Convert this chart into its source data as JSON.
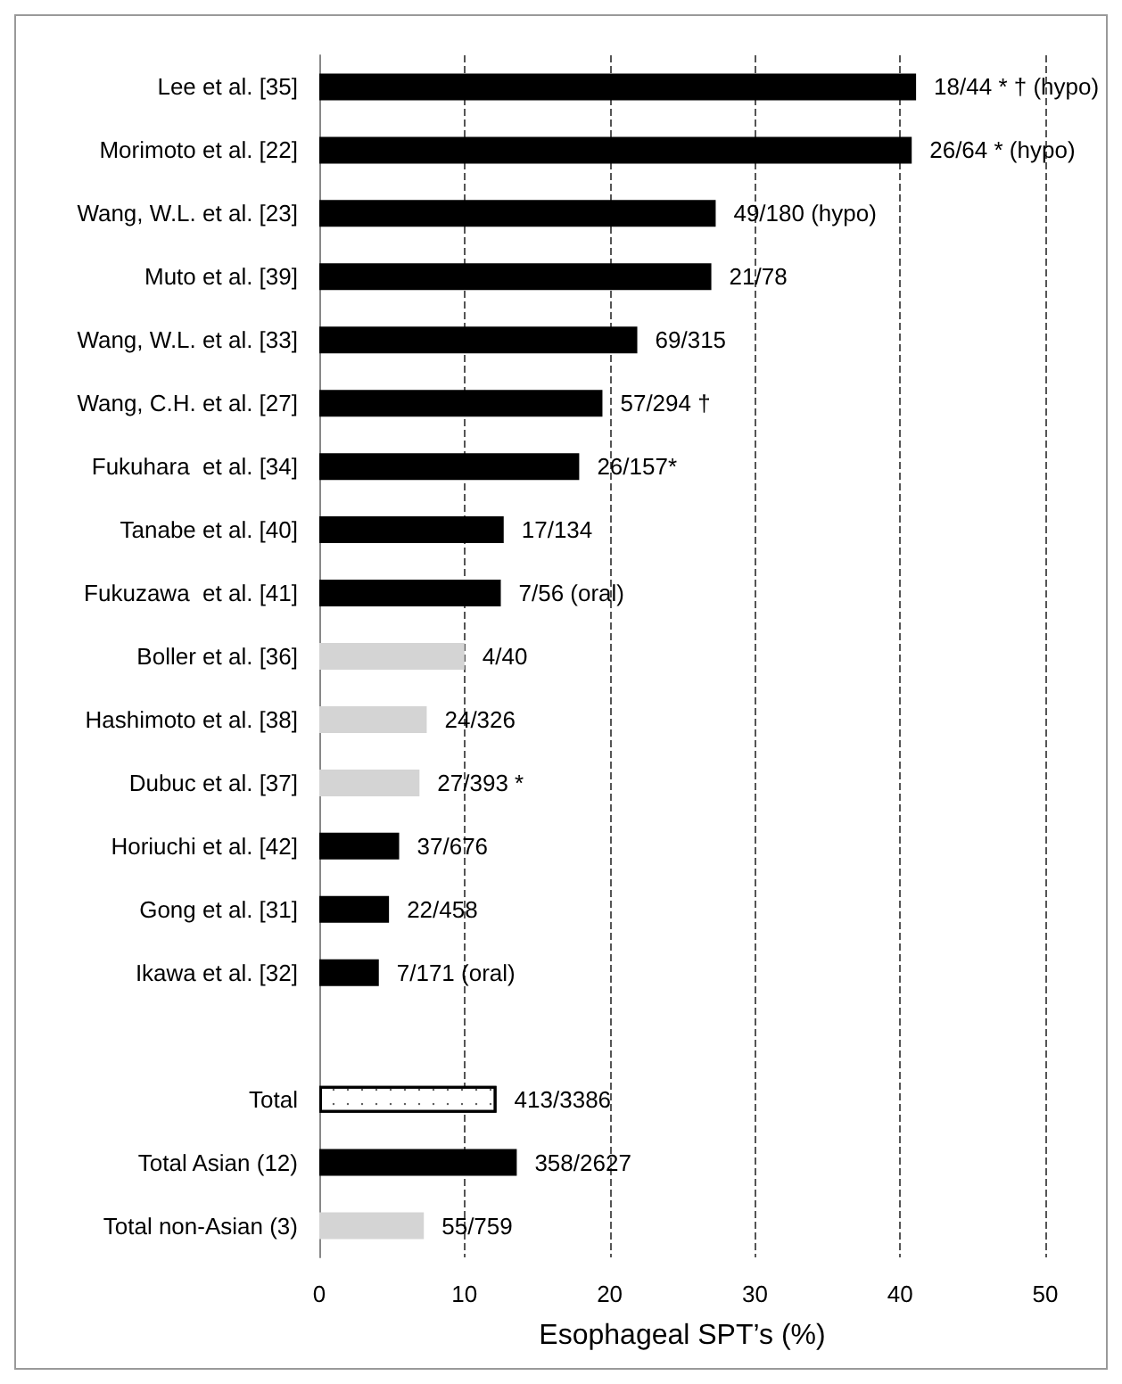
{
  "chart_data": {
    "type": "bar",
    "orientation": "horizontal",
    "xlabel": "Esophageal SPT’s (%)",
    "categories": [
      "Lee et al. [35]",
      "Morimoto et al. [22]",
      "Wang, W.L. et al. [23]",
      "Muto et al. [39]",
      "Wang, W.L. et al. [33]",
      "Wang, C.H. et al. [27]",
      "Fukuhara  et al. [34]",
      "Tanabe et al. [40]",
      "Fukuzawa  et al. [41]",
      "Boller et al. [36]",
      "Hashimoto et al. [38]",
      "Dubuc et al. [37]",
      "Horiuchi et al. [42]",
      "Gong et al. [31]",
      "Ikawa et al. [32]",
      null,
      "Total",
      "Total Asian (12)",
      "Total non-Asian (3)"
    ],
    "values": [
      41.1,
      40.8,
      27.3,
      27.0,
      21.9,
      19.5,
      17.9,
      12.7,
      12.5,
      10.0,
      7.4,
      6.9,
      5.5,
      4.8,
      4.1,
      null,
      12.2,
      13.6,
      7.2
    ],
    "colors": [
      "#000000",
      "#000000",
      "#000000",
      "#000000",
      "#000000",
      "#000000",
      "#000000",
      "#000000",
      "#000000",
      "#d4d4d4",
      "#d4d4d4",
      "#d4d4d4",
      "#000000",
      "#000000",
      "#000000",
      "#000000",
      "#ffffff",
      "#000000",
      "#d4d4d4"
    ],
    "value_labels": [
      "18/44 * † (hypo)",
      "26/64 * (hypo)",
      "49/180 (hypo)",
      "21/78",
      "69/315",
      "57/294 †",
      "26/157*",
      "17/134",
      "7/56 (oral)",
      "4/40",
      "24/326",
      "27/393 *",
      "37/676",
      "22/458",
      "7/171 (oral)",
      null,
      "413/3386",
      "358/2627",
      "55/759"
    ],
    "xlim": [
      0,
      50
    ],
    "xticks": [
      0,
      10,
      20,
      30,
      40,
      50
    ],
    "grid": "x"
  }
}
